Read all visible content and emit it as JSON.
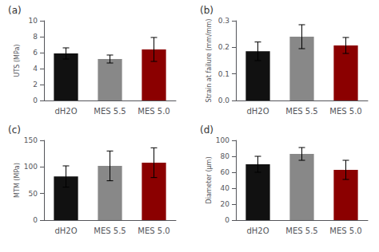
{
  "chart_data": [
    {
      "type": "bar",
      "title": "(a)",
      "ylabel": "UTS (MPa)",
      "categories": [
        "dH2O",
        "MES 5.5",
        "MES 5.0"
      ],
      "values": [
        5.9,
        5.2,
        6.4
      ],
      "errors": [
        0.7,
        0.5,
        1.5
      ],
      "colors": [
        "#111111",
        "#888888",
        "#8B0000"
      ],
      "ylim": [
        0,
        10
      ],
      "yticks": [
        0,
        2,
        4,
        6,
        8,
        10
      ],
      "grid": false
    },
    {
      "type": "bar",
      "title": "(b)",
      "ylabel": "Strain at failure (mm/mm)",
      "categories": [
        "dH2O",
        "MES 5.5",
        "MES 5.0"
      ],
      "values": [
        0.185,
        0.24,
        0.207
      ],
      "errors": [
        0.035,
        0.045,
        0.03
      ],
      "colors": [
        "#111111",
        "#888888",
        "#8B0000"
      ],
      "ylim": [
        0,
        0.3
      ],
      "yticks": [
        {
          "value": 0,
          "label": "0.0"
        },
        0.1,
        0.2,
        0.3
      ],
      "grid": false
    },
    {
      "type": "bar",
      "title": "(c)",
      "ylabel": "MTM (MPa)",
      "categories": [
        "dH2O",
        "MES 5.5",
        "MES 5.0"
      ],
      "values": [
        82,
        102,
        108
      ],
      "errors": [
        20,
        28,
        28
      ],
      "colors": [
        "#111111",
        "#888888",
        "#8B0000"
      ],
      "ylim": [
        0,
        150
      ],
      "yticks": [
        0,
        50,
        100,
        150
      ],
      "grid": false
    },
    {
      "type": "bar",
      "title": "(d)",
      "ylabel": "Diameter (μm)",
      "categories": [
        "dH2O",
        "MES 5.5",
        "MES 5.0"
      ],
      "values": [
        70,
        83,
        63
      ],
      "errors": [
        10,
        8,
        12
      ],
      "colors": [
        "#111111",
        "#888888",
        "#8B0000"
      ],
      "ylim": [
        0,
        100
      ],
      "yticks": [
        0,
        20,
        40,
        60,
        80,
        100
      ],
      "grid": false
    }
  ]
}
